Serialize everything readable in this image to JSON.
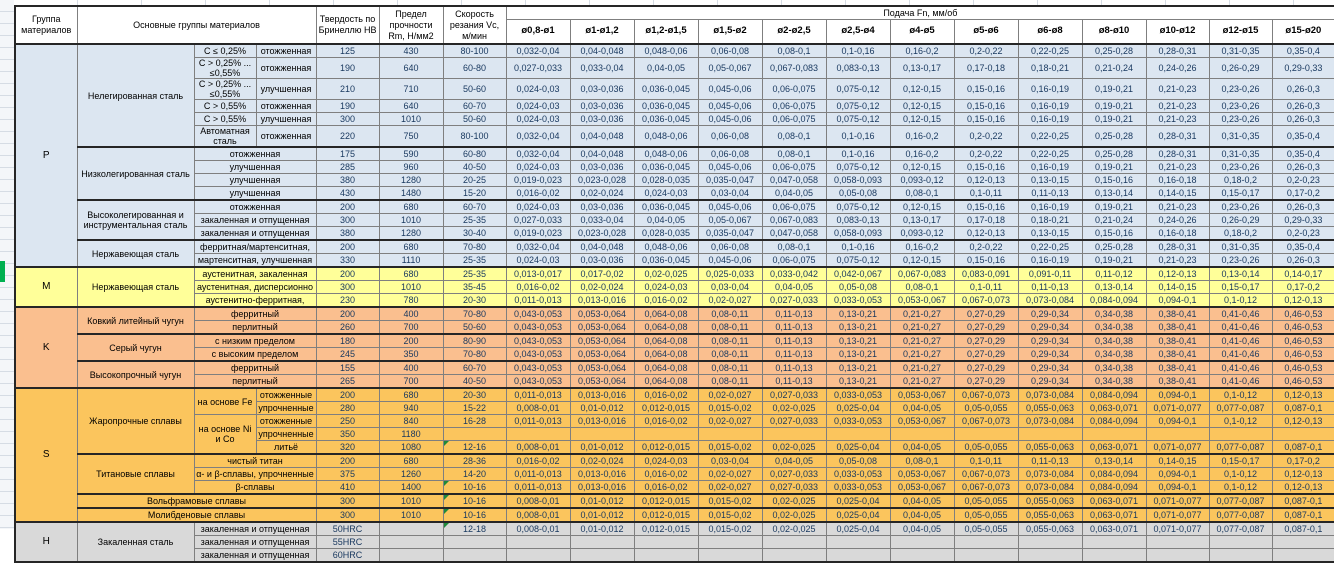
{
  "header": {
    "col_group": "Группа материалов",
    "col_main": "Основные группы материалов",
    "col_hardness": "Твердость по Бринеллю НВ",
    "col_strength": "Предел прочности Rm, Н/мм2",
    "col_speed": "Скорость резания Vc, м/мин",
    "feed_title": "Подача Fn, мм/об",
    "diameters": [
      "ø0,8-ø1",
      "ø1-ø1,2",
      "ø1,2-ø1,5",
      "ø1,5-ø2",
      "ø2-ø2,5",
      "ø2,5-ø4",
      "ø4-ø5",
      "ø5-ø6",
      "ø6-ø8",
      "ø8-ø10",
      "ø10-ø12",
      "ø12-ø15",
      "ø15-ø20"
    ]
  },
  "colors": {
    "p": "#DCE6F1",
    "m": "#FFFF99",
    "k": "#FABF8F",
    "s": "#FBC55D",
    "h": "#D9D9D9",
    "grid": "#7f7f7f",
    "section_border": "#262626",
    "flag_green": "#1e8a3c",
    "gutter_green": "#00B050",
    "value_text": "#17375E"
  },
  "feed_sets": {
    "A": [
      "0,032-0,04",
      "0,04-0,048",
      "0,048-0,06",
      "0,06-0,08",
      "0,08-0,1",
      "0,1-0,16",
      "0,16-0,2",
      "0,2-0,22",
      "0,22-0,25",
      "0,25-0,28",
      "0,28-0,31",
      "0,31-0,35",
      "0,35-0,4"
    ],
    "B": [
      "0,027-0,033",
      "0,033-0,04",
      "0,04-0,05",
      "0,05-0,067",
      "0,067-0,083",
      "0,083-0,13",
      "0,13-0,17",
      "0,17-0,18",
      "0,18-0,21",
      "0,21-0,24",
      "0,24-0,26",
      "0,26-0,29",
      "0,29-0,33"
    ],
    "C": [
      "0,024-0,03",
      "0,03-0,036",
      "0,036-0,045",
      "0,045-0,06",
      "0,06-0,075",
      "0,075-0,12",
      "0,12-0,15",
      "0,15-0,16",
      "0,16-0,19",
      "0,19-0,21",
      "0,21-0,23",
      "0,23-0,26",
      "0,26-0,3"
    ],
    "D": [
      "0,019-0,023",
      "0,023-0,028",
      "0,028-0,035",
      "0,035-0,047",
      "0,047-0,058",
      "0,058-0,093",
      "0,093-0,12",
      "0,12-0,13",
      "0,13-0,15",
      "0,15-0,16",
      "0,16-0,18",
      "0,18-0,2",
      "0,2-0,23"
    ],
    "E": [
      "0,016-0,02",
      "0,02-0,024",
      "0,024-0,03",
      "0,03-0,04",
      "0,04-0,05",
      "0,05-0,08",
      "0,08-0,1",
      "0,1-0,11",
      "0,11-0,13",
      "0,13-0,14",
      "0,14-0,15",
      "0,15-0,17",
      "0,17-0,2"
    ],
    "F": [
      "0,013-0,017",
      "0,017-0,02",
      "0,02-0,025",
      "0,025-0,033",
      "0,033-0,042",
      "0,042-0,067",
      "0,067-0,083",
      "0,083-0,091",
      "0,091-0,11",
      "0,11-0,12",
      "0,12-0,13",
      "0,13-0,14",
      "0,14-0,17"
    ],
    "G": [
      "0,011-0,013",
      "0,013-0,016",
      "0,016-0,02",
      "0,02-0,027",
      "0,027-0,033",
      "0,033-0,053",
      "0,053-0,067",
      "0,067-0,073",
      "0,073-0,084",
      "0,084-0,094",
      "0,094-0,1",
      "0,1-0,12",
      "0,12-0,13"
    ],
    "H": [
      "0,043-0,053",
      "0,053-0,064",
      "0,064-0,08",
      "0,08-0,11",
      "0,11-0,13",
      "0,13-0,21",
      "0,21-0,27",
      "0,27-0,29",
      "0,29-0,34",
      "0,34-0,38",
      "0,38-0,41",
      "0,41-0,46",
      "0,46-0,53"
    ],
    "I": [
      "0,008-0,01",
      "0,01-0,012",
      "0,012-0,015",
      "0,015-0,02",
      "0,02-0,025",
      "0,025-0,04",
      "0,04-0,05",
      "0,05-0,055",
      "0,055-0,063",
      "0,063-0,071",
      "0,071-0,077",
      "0,077-0,087",
      "0,087-0,1"
    ],
    "BLANK": [
      "",
      "",
      "",
      "",
      "",
      "",
      "",
      "",
      "",
      "",
      "",
      "",
      ""
    ]
  },
  "rows": [
    {
      "g": "p",
      "fs": "A",
      "sec": true,
      "cells": [
        {
          "t": "P",
          "k": "grp",
          "rs": 15
        },
        {
          "t": "Нелегированная сталь",
          "k": "name",
          "rs": 6
        },
        {
          "t": "C ≤ 0,25%",
          "k": "sub"
        },
        {
          "t": "отожженная",
          "k": "sub"
        },
        {
          "t": "125",
          "k": "v"
        },
        {
          "t": "430",
          "k": "v"
        },
        {
          "t": "80-100",
          "k": "v"
        }
      ]
    },
    {
      "g": "p",
      "fs": "B",
      "h": 21,
      "cells": [
        {
          "t": "C > 0,25% ... ≤0,55%",
          "k": "sub"
        },
        {
          "t": "отожженная",
          "k": "sub"
        },
        {
          "t": "190",
          "k": "v"
        },
        {
          "t": "640",
          "k": "v"
        },
        {
          "t": "60-80",
          "k": "v"
        }
      ]
    },
    {
      "g": "p",
      "fs": "C",
      "h": 21,
      "cells": [
        {
          "t": "C > 0,25% ... ≤0,55%",
          "k": "sub"
        },
        {
          "t": "улучшенная",
          "k": "sub"
        },
        {
          "t": "210",
          "k": "v"
        },
        {
          "t": "710",
          "k": "v"
        },
        {
          "t": "50-60",
          "k": "v"
        }
      ]
    },
    {
      "g": "p",
      "fs": "C",
      "cells": [
        {
          "t": "C > 0,55%",
          "k": "sub"
        },
        {
          "t": "отожженная",
          "k": "sub"
        },
        {
          "t": "190",
          "k": "v"
        },
        {
          "t": "640",
          "k": "v"
        },
        {
          "t": "60-70",
          "k": "v"
        }
      ]
    },
    {
      "g": "p",
      "fs": "C",
      "cells": [
        {
          "t": "C > 0,55%",
          "k": "sub"
        },
        {
          "t": "улучшенная",
          "k": "sub"
        },
        {
          "t": "300",
          "k": "v"
        },
        {
          "t": "1010",
          "k": "v"
        },
        {
          "t": "50-60",
          "k": "v"
        }
      ]
    },
    {
      "g": "p",
      "fs": "A",
      "h": 21,
      "cells": [
        {
          "t": "Автоматная сталь",
          "k": "sub"
        },
        {
          "t": "отожженная",
          "k": "sub"
        },
        {
          "t": "220",
          "k": "v"
        },
        {
          "t": "750",
          "k": "v"
        },
        {
          "t": "80-100",
          "k": "v"
        }
      ]
    },
    {
      "g": "p",
      "fs": "A",
      "sec": true,
      "cells": [
        {
          "t": "Низколегированная сталь",
          "k": "name",
          "rs": 4
        },
        {
          "t": "отожженная",
          "k": "sub",
          "cs": 2
        },
        {
          "t": "175",
          "k": "v"
        },
        {
          "t": "590",
          "k": "v"
        },
        {
          "t": "60-80",
          "k": "v"
        }
      ]
    },
    {
      "g": "p",
      "fs": "C",
      "cells": [
        {
          "t": "улучшенная",
          "k": "sub",
          "cs": 2
        },
        {
          "t": "285",
          "k": "v"
        },
        {
          "t": "960",
          "k": "v"
        },
        {
          "t": "40-50",
          "k": "v"
        }
      ]
    },
    {
      "g": "p",
      "fs": "D",
      "cells": [
        {
          "t": "улучшенная",
          "k": "sub",
          "cs": 2
        },
        {
          "t": "380",
          "k": "v"
        },
        {
          "t": "1280",
          "k": "v"
        },
        {
          "t": "20-25",
          "k": "v"
        }
      ]
    },
    {
      "g": "p",
      "fs": "E",
      "cells": [
        {
          "t": "улучшенная",
          "k": "sub",
          "cs": 2
        },
        {
          "t": "430",
          "k": "v"
        },
        {
          "t": "1480",
          "k": "v"
        },
        {
          "t": "15-20",
          "k": "v"
        }
      ]
    },
    {
      "g": "p",
      "fs": "C",
      "sec": true,
      "cells": [
        {
          "t": "Высоколегированная и инструментальная сталь",
          "k": "name",
          "rs": 3
        },
        {
          "t": "отожженная",
          "k": "sub",
          "cs": 2
        },
        {
          "t": "200",
          "k": "v"
        },
        {
          "t": "680",
          "k": "v"
        },
        {
          "t": "60-70",
          "k": "v"
        }
      ]
    },
    {
      "g": "p",
      "fs": "B",
      "cells": [
        {
          "t": "закаленная и отпущенная",
          "k": "sub",
          "cs": 2
        },
        {
          "t": "300",
          "k": "v"
        },
        {
          "t": "1010",
          "k": "v"
        },
        {
          "t": "25-35",
          "k": "v"
        }
      ]
    },
    {
      "g": "p",
      "fs": "D",
      "cells": [
        {
          "t": "закаленная и отпущенная",
          "k": "sub",
          "cs": 2
        },
        {
          "t": "380",
          "k": "v"
        },
        {
          "t": "1280",
          "k": "v"
        },
        {
          "t": "30-40",
          "k": "v"
        }
      ]
    },
    {
      "g": "p",
      "fs": "A",
      "sec": true,
      "cells": [
        {
          "t": "Нержавеющая сталь",
          "k": "name",
          "rs": 2
        },
        {
          "t": "ферритная/мартенситная,",
          "k": "sub",
          "cs": 2
        },
        {
          "t": "200",
          "k": "v"
        },
        {
          "t": "680",
          "k": "v"
        },
        {
          "t": "70-80",
          "k": "v"
        }
      ]
    },
    {
      "g": "p",
      "fs": "C",
      "cells": [
        {
          "t": "мартенситная, улучшенная",
          "k": "sub",
          "cs": 2
        },
        {
          "t": "330",
          "k": "v"
        },
        {
          "t": "1110",
          "k": "v"
        },
        {
          "t": "25-35",
          "k": "v"
        }
      ]
    },
    {
      "g": "m",
      "fs": "F",
      "sec": true,
      "cells": [
        {
          "t": "M",
          "k": "grp",
          "rs": 3
        },
        {
          "t": "Нержавеющая сталь",
          "k": "name",
          "rs": 3
        },
        {
          "t": "аустенитная, закаленная",
          "k": "sub",
          "cs": 2
        },
        {
          "t": "200",
          "k": "v"
        },
        {
          "t": "680",
          "k": "v"
        },
        {
          "t": "25-35",
          "k": "v"
        }
      ]
    },
    {
      "g": "m",
      "fs": "E",
      "cells": [
        {
          "t": "аустенитная, дисперсионно",
          "k": "sub",
          "cs": 2
        },
        {
          "t": "300",
          "k": "v"
        },
        {
          "t": "1010",
          "k": "v"
        },
        {
          "t": "35-45",
          "k": "v"
        }
      ]
    },
    {
      "g": "m",
      "fs": "G",
      "cells": [
        {
          "t": "аустенитно-ферритная,",
          "k": "sub",
          "cs": 2
        },
        {
          "t": "230",
          "k": "v"
        },
        {
          "t": "780",
          "k": "v"
        },
        {
          "t": "20-30",
          "k": "v"
        }
      ]
    },
    {
      "g": "k",
      "fs": "H",
      "sec": true,
      "cells": [
        {
          "t": "K",
          "k": "grp",
          "rs": 6
        },
        {
          "t": "Ковкий литейный чугун",
          "k": "name",
          "rs": 2
        },
        {
          "t": "ферритный",
          "k": "sub",
          "cs": 2
        },
        {
          "t": "200",
          "k": "v"
        },
        {
          "t": "400",
          "k": "v"
        },
        {
          "t": "70-80",
          "k": "v"
        }
      ]
    },
    {
      "g": "k",
      "fs": "H",
      "cells": [
        {
          "t": "перлитный",
          "k": "sub",
          "cs": 2
        },
        {
          "t": "260",
          "k": "v"
        },
        {
          "t": "700",
          "k": "v"
        },
        {
          "t": "50-60",
          "k": "v"
        }
      ]
    },
    {
      "g": "k",
      "fs": "H",
      "sec": true,
      "cells": [
        {
          "t": "Серый чугун",
          "k": "name",
          "rs": 2
        },
        {
          "t": "с низким пределом",
          "k": "sub",
          "cs": 2
        },
        {
          "t": "180",
          "k": "v"
        },
        {
          "t": "200",
          "k": "v"
        },
        {
          "t": "80-90",
          "k": "v"
        }
      ]
    },
    {
      "g": "k",
      "fs": "H",
      "cells": [
        {
          "t": "с высоким пределом",
          "k": "sub",
          "cs": 2
        },
        {
          "t": "245",
          "k": "v"
        },
        {
          "t": "350",
          "k": "v"
        },
        {
          "t": "70-80",
          "k": "v"
        }
      ]
    },
    {
      "g": "k",
      "fs": "H",
      "sec": true,
      "cells": [
        {
          "t": "Высокопрочный чугун",
          "k": "name",
          "rs": 2
        },
        {
          "t": "ферритный",
          "k": "sub",
          "cs": 2
        },
        {
          "t": "155",
          "k": "v"
        },
        {
          "t": "400",
          "k": "v"
        },
        {
          "t": "60-70",
          "k": "v"
        }
      ]
    },
    {
      "g": "k",
      "fs": "H",
      "cells": [
        {
          "t": "перлитный",
          "k": "sub",
          "cs": 2
        },
        {
          "t": "265",
          "k": "v"
        },
        {
          "t": "700",
          "k": "v"
        },
        {
          "t": "40-50",
          "k": "v"
        }
      ]
    },
    {
      "g": "s",
      "fs": "G",
      "sec": true,
      "cells": [
        {
          "t": "S",
          "k": "grp",
          "rs": 10
        },
        {
          "t": "Жаропрочные сплавы",
          "k": "name",
          "rs": 5
        },
        {
          "t": "на основе Fe",
          "k": "sub",
          "rs": 2
        },
        {
          "t": "отожженные",
          "k": "sub"
        },
        {
          "t": "200",
          "k": "v"
        },
        {
          "t": "680",
          "k": "v"
        },
        {
          "t": "20-30",
          "k": "v"
        }
      ]
    },
    {
      "g": "s",
      "fs": "I",
      "cells": [
        {
          "t": "упрочненные",
          "k": "sub"
        },
        {
          "t": "280",
          "k": "v"
        },
        {
          "t": "940",
          "k": "v"
        },
        {
          "t": "15-22",
          "k": "v"
        }
      ]
    },
    {
      "g": "s",
      "fs": "G",
      "cells": [
        {
          "t": "на основе Ni и Co",
          "k": "sub",
          "rs": 3
        },
        {
          "t": "отожженные",
          "k": "sub"
        },
        {
          "t": "250",
          "k": "v"
        },
        {
          "t": "840",
          "k": "v"
        },
        {
          "t": "16-28",
          "k": "v"
        }
      ]
    },
    {
      "g": "s",
      "fs": "BLANK",
      "cells": [
        {
          "t": "упрочненные",
          "k": "sub"
        },
        {
          "t": "350",
          "k": "v"
        },
        {
          "t": "1180",
          "k": "v"
        },
        {
          "t": "",
          "k": "v"
        }
      ]
    },
    {
      "g": "s",
      "fs": "I",
      "cells": [
        {
          "t": "литьё",
          "k": "sub"
        },
        {
          "t": "320",
          "k": "v"
        },
        {
          "t": "1080",
          "k": "v"
        },
        {
          "t": "12-16",
          "k": "vtri"
        }
      ]
    },
    {
      "g": "s",
      "fs": "E",
      "sec": true,
      "cells": [
        {
          "t": "Титановые сплавы",
          "k": "name",
          "rs": 3
        },
        {
          "t": "чистый титан",
          "k": "sub",
          "cs": 2
        },
        {
          "t": "200",
          "k": "v"
        },
        {
          "t": "680",
          "k": "v"
        },
        {
          "t": "28-36",
          "k": "v"
        }
      ]
    },
    {
      "g": "s",
      "fs": "G",
      "cells": [
        {
          "t": "α- и β-сплавы, упрочненные",
          "k": "sub",
          "cs": 2
        },
        {
          "t": "375",
          "k": "v"
        },
        {
          "t": "1260",
          "k": "v"
        },
        {
          "t": "14-20",
          "k": "v"
        }
      ]
    },
    {
      "g": "s",
      "fs": "G",
      "cells": [
        {
          "t": "β-сплавы",
          "k": "sub",
          "cs": 2
        },
        {
          "t": "410",
          "k": "v"
        },
        {
          "t": "1400",
          "k": "v"
        },
        {
          "t": "10-16",
          "k": "vtri"
        }
      ]
    },
    {
      "g": "s",
      "fs": "I",
      "sec": true,
      "cells": [
        {
          "t": "Вольфрамовые сплавы",
          "k": "name",
          "cs": 3
        },
        {
          "t": "300",
          "k": "v"
        },
        {
          "t": "1010",
          "k": "v"
        },
        {
          "t": "10-16",
          "k": "vtri"
        }
      ]
    },
    {
      "g": "s",
      "fs": "I",
      "sec": true,
      "cells": [
        {
          "t": "Молибденовые сплавы",
          "k": "name",
          "cs": 3
        },
        {
          "t": "300",
          "k": "v"
        },
        {
          "t": "1010",
          "k": "v"
        },
        {
          "t": "10-16",
          "k": "vtri"
        }
      ]
    },
    {
      "g": "h",
      "fs": "I",
      "sec": true,
      "cells": [
        {
          "t": "H",
          "k": "grp",
          "rs": 3
        },
        {
          "t": "Закаленная сталь",
          "k": "name",
          "rs": 3
        },
        {
          "t": "закаленная и отпущенная",
          "k": "sub",
          "cs": 2
        },
        {
          "t": "50HRC",
          "k": "v"
        },
        {
          "t": "",
          "k": "v"
        },
        {
          "t": "12-18",
          "k": "vtri"
        }
      ]
    },
    {
      "g": "h",
      "fs": "BLANK",
      "cells": [
        {
          "t": "закаленная и отпущенная",
          "k": "sub",
          "cs": 2
        },
        {
          "t": "55HRC",
          "k": "v"
        },
        {
          "t": "",
          "k": "v"
        },
        {
          "t": "",
          "k": "v"
        }
      ]
    },
    {
      "g": "h",
      "fs": "BLANK",
      "cells": [
        {
          "t": "закаленная и отпущенная",
          "k": "sub",
          "cs": 2
        },
        {
          "t": "60HRC",
          "k": "v"
        },
        {
          "t": "",
          "k": "v"
        },
        {
          "t": "",
          "k": "v"
        }
      ]
    }
  ]
}
